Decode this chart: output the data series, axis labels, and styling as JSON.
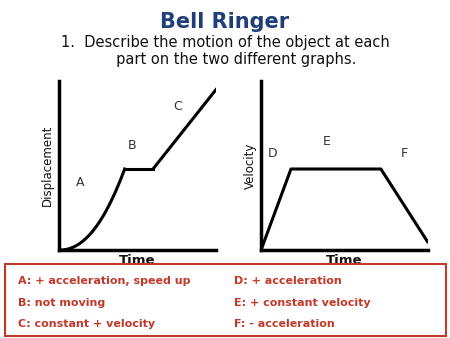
{
  "title": "Bell Ringer",
  "title_color": "#1F3E7A",
  "title_fontsize": 15,
  "subtitle_line1": "1.  Describe the motion of the object at each",
  "subtitle_line2": "     part on the two different graphs.",
  "subtitle_fontsize": 10.5,
  "left_ylabel": "Displacement",
  "left_xlabel": "Time",
  "right_ylabel": "Velocity",
  "right_xlabel": "Time",
  "legend_items_left": [
    "A: + acceleration, speed up",
    "B: not moving",
    "C: constant + velocity"
  ],
  "legend_items_right": [
    "D: + acceleration",
    "E: + constant velocity",
    "F: - acceleration"
  ],
  "legend_text_color": "#c0392b",
  "legend_border_color": "#c0392b",
  "bg_color": "#ffffff",
  "curve_color": "#000000",
  "label_color": "#333333",
  "axes_lw": 2.5,
  "curve_lw": 2.2
}
